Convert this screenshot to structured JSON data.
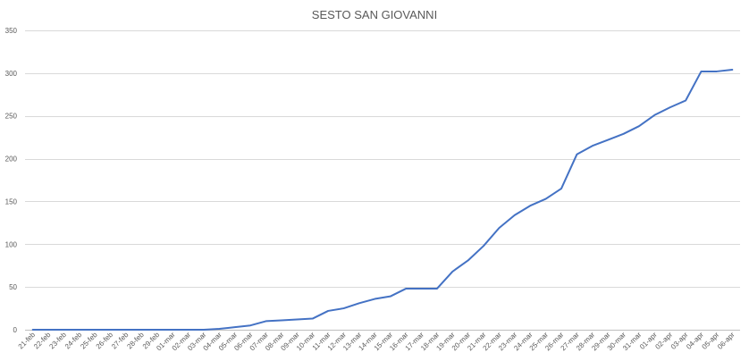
{
  "chart_data": {
    "type": "line",
    "title": "SESTO SAN GIOVANNI",
    "xlabel": "",
    "ylabel": "",
    "ylim": [
      0,
      350
    ],
    "yticks": [
      0,
      50,
      100,
      150,
      200,
      250,
      300,
      350
    ],
    "grid": true,
    "legend": "none",
    "line_color": "#4472C4",
    "categories": [
      "21-feb",
      "22-feb",
      "23-feb",
      "24-feb",
      "25-feb",
      "26-feb",
      "27-feb",
      "28-feb",
      "29-feb",
      "01-mar",
      "02-mar",
      "03-mar",
      "04-mar",
      "05-mar",
      "06-mar",
      "07-mar",
      "08-mar",
      "09-mar",
      "10-mar",
      "11-mar",
      "12-mar",
      "13-mar",
      "14-mar",
      "15-mar",
      "16-mar",
      "17-mar",
      "18-mar",
      "19-mar",
      "20-mar",
      "21-mar",
      "22-mar",
      "23-mar",
      "24-mar",
      "25-mar",
      "26-mar",
      "27-mar",
      "28-mar",
      "29-mar",
      "30-mar",
      "31-mar",
      "01-apr",
      "02-apr",
      "03-apr",
      "04-apr",
      "05-apr",
      "06-apr"
    ],
    "values": [
      0,
      0,
      0,
      0,
      0,
      0,
      0,
      0,
      0,
      0,
      0,
      0,
      1,
      3,
      5,
      10,
      11,
      12,
      13,
      22,
      25,
      31,
      36,
      39,
      48,
      48,
      48,
      68,
      81,
      98,
      119,
      134,
      145,
      153,
      165,
      205,
      215,
      222,
      229,
      238,
      251,
      260,
      268,
      302,
      302,
      304
    ]
  }
}
